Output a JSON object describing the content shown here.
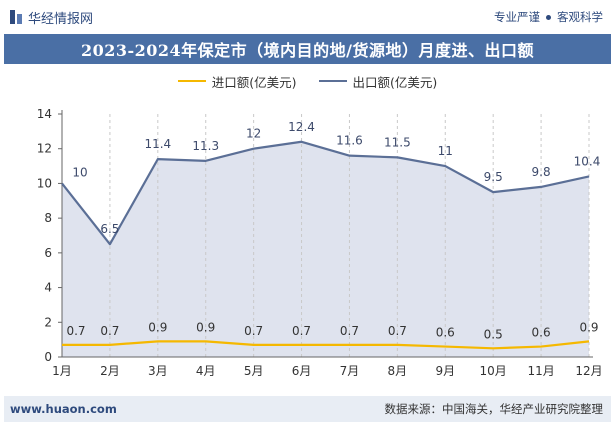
{
  "header": {
    "brand": "华经情报网",
    "tagline_left": "专业严谨",
    "tagline_right": "客观科学"
  },
  "title": "2023-2024年保定市（境内目的地/货源地）月度进、出口额",
  "footer": {
    "website": "www.huaon.com",
    "source": "数据来源：中国海关，华经产业研究院整理"
  },
  "colors": {
    "import": "#f5b800",
    "export": "#5b6f96",
    "export_fill": "#dfe3ee",
    "title_band": "#4a6fa5"
  },
  "chart_data": {
    "type": "area",
    "categories": [
      "1月",
      "2月",
      "3月",
      "4月",
      "5月",
      "6月",
      "7月",
      "8月",
      "9月",
      "10月",
      "11月",
      "12月"
    ],
    "series": [
      {
        "name": "进口额(亿美元)",
        "values": [
          0.7,
          0.7,
          0.9,
          0.9,
          0.7,
          0.7,
          0.7,
          0.7,
          0.6,
          0.5,
          0.6,
          0.9
        ]
      },
      {
        "name": "出口额(亿美元)",
        "values": [
          10,
          6.5,
          11.4,
          11.3,
          12,
          12.4,
          11.6,
          11.5,
          11,
          9.5,
          9.8,
          10.4
        ]
      }
    ],
    "y_ticks": [
      "0",
      "2",
      "4",
      "6",
      "8",
      "10",
      "12",
      "14"
    ],
    "ylim": [
      0,
      14
    ],
    "legend_position": "top-center",
    "grid": "vertical-dashed"
  }
}
